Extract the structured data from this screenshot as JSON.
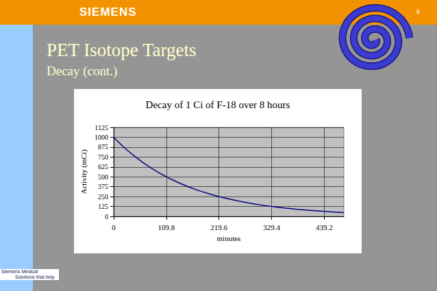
{
  "slide": {
    "logo": "SIEMENS",
    "page": "6",
    "title": "PET Isotope Targets",
    "subtitle": "Decay (cont.)",
    "footer": [
      "Siemens Medical",
      "Solutions that help"
    ]
  },
  "chart_data": {
    "type": "line",
    "title": "Decay of 1 Ci of F-18 over 8 hours",
    "x_label": "minutes",
    "y_label": "Activity (mCi)",
    "x": [
      0,
      20,
      40,
      60,
      80,
      100,
      120,
      140,
      160,
      180,
      200,
      220,
      240,
      260,
      280,
      300,
      320,
      340,
      360,
      380,
      400,
      420,
      440,
      460,
      480
    ],
    "values": [
      1000,
      881,
      777,
      685,
      604,
      532,
      469,
      413,
      364,
      321,
      283,
      249,
      220,
      194,
      171,
      150,
      133,
      117,
      103,
      91,
      80,
      71,
      62,
      55,
      48
    ],
    "color": "#000080",
    "xlim": [
      0,
      480
    ],
    "xticks": [
      0,
      109.8,
      219.6,
      329.4,
      439.2
    ],
    "ylim": [
      0,
      1125
    ],
    "yticks": [
      0,
      125,
      250,
      375,
      500,
      625,
      750,
      875,
      1000,
      1125
    ],
    "grid": true
  }
}
